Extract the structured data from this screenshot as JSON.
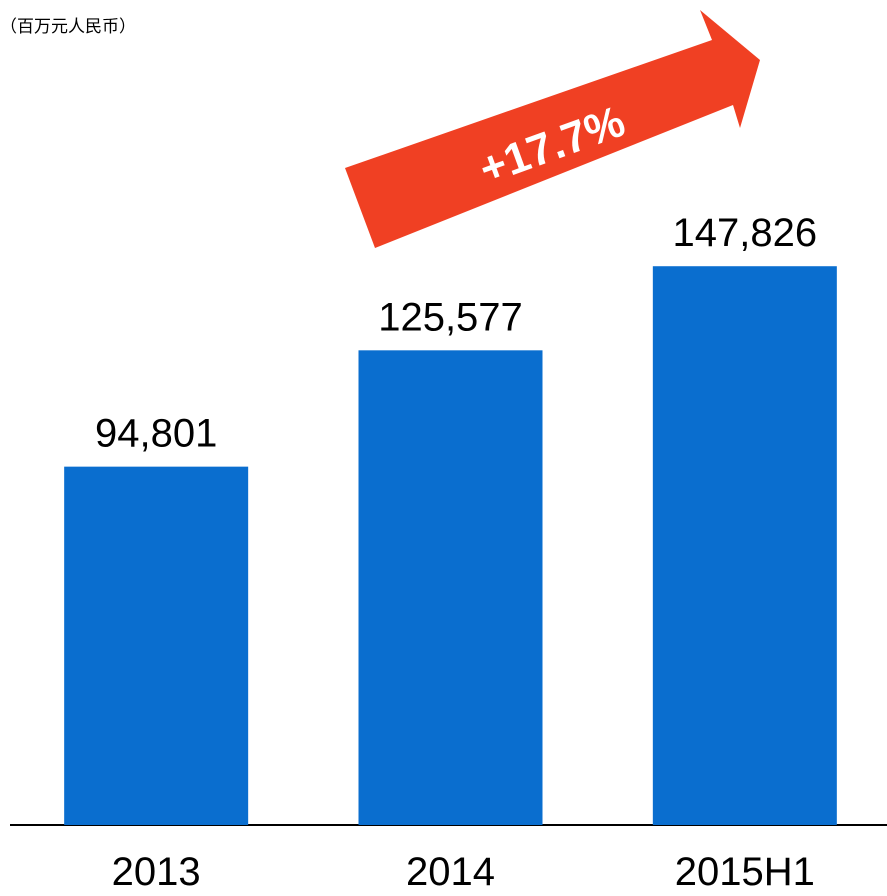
{
  "chart_data": {
    "type": "bar",
    "subtitle": "（百万元人民币）",
    "annotation": "+17.7%",
    "categories": [
      "2013",
      "2014",
      "2015H1"
    ],
    "values": [
      94801,
      125577,
      147826
    ],
    "value_labels": [
      "94,801",
      "125,577",
      "147,826"
    ],
    "color": "#0a6ecf",
    "ylim": [
      0,
      150000
    ]
  }
}
